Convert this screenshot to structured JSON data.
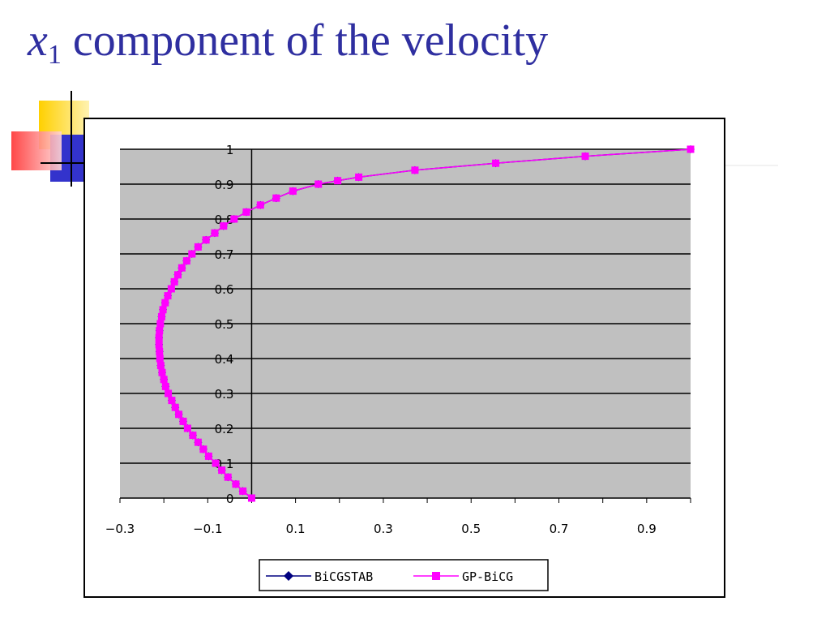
{
  "title": {
    "var": "x",
    "sub": "1",
    "text": " component of the velocity"
  },
  "colors": {
    "title": "#2f2fa0",
    "plot_background": "#c0c0c0",
    "bicgstab": "#000080",
    "gpbicg": "#ff00ff",
    "deco_yellow": "#ffd000",
    "deco_blue": "#3333cc",
    "deco_red": "#ff3333"
  },
  "chart_data": {
    "type": "line",
    "xlim": [
      -0.3,
      1.0
    ],
    "ylim": [
      0,
      1
    ],
    "xticks": [
      "-0.3",
      "-0.1",
      "0.1",
      "0.3",
      "0.5",
      "0.7",
      "0.9"
    ],
    "yticks": [
      "0",
      "0.1",
      "0.2",
      "0.3",
      "0.4",
      "0.5",
      "0.6",
      "0.7",
      "0.8",
      "0.9",
      "1"
    ],
    "grid": "horizontal",
    "legend": "bottom",
    "y": [
      0,
      0.02,
      0.04,
      0.06,
      0.08,
      0.1,
      0.12,
      0.14,
      0.16,
      0.18,
      0.2,
      0.22,
      0.24,
      0.26,
      0.28,
      0.3,
      0.32,
      0.34,
      0.36,
      0.38,
      0.4,
      0.42,
      0.44,
      0.46,
      0.48,
      0.5,
      0.52,
      0.54,
      0.56,
      0.58,
      0.6,
      0.62,
      0.64,
      0.66,
      0.68,
      0.7,
      0.72,
      0.74,
      0.76,
      0.78,
      0.8,
      0.82,
      0.84,
      0.86,
      0.88,
      0.9,
      0.91,
      0.92,
      0.94,
      0.96,
      0.98,
      1.0
    ],
    "series": [
      {
        "name": "BiCGSTAB",
        "marker": "diamond",
        "x": [
          0.0,
          -0.02,
          -0.036,
          -0.054,
          -0.068,
          -0.082,
          -0.098,
          -0.11,
          -0.122,
          -0.134,
          -0.146,
          -0.156,
          -0.166,
          -0.174,
          -0.182,
          -0.19,
          -0.196,
          -0.2,
          -0.204,
          -0.207,
          -0.209,
          -0.21,
          -0.211,
          -0.211,
          -0.21,
          -0.208,
          -0.205,
          -0.202,
          -0.197,
          -0.191,
          -0.183,
          -0.176,
          -0.168,
          -0.159,
          -0.148,
          -0.136,
          -0.122,
          -0.104,
          -0.084,
          -0.064,
          -0.04,
          -0.012,
          0.02,
          0.056,
          0.094,
          0.152,
          0.196,
          0.244,
          0.372,
          0.556,
          0.76,
          1.0
        ]
      },
      {
        "name": "GP-BiCG",
        "marker": "square",
        "x": [
          0.0,
          -0.02,
          -0.036,
          -0.054,
          -0.068,
          -0.082,
          -0.098,
          -0.11,
          -0.122,
          -0.134,
          -0.146,
          -0.156,
          -0.166,
          -0.174,
          -0.182,
          -0.19,
          -0.196,
          -0.2,
          -0.204,
          -0.207,
          -0.209,
          -0.21,
          -0.211,
          -0.211,
          -0.21,
          -0.208,
          -0.205,
          -0.202,
          -0.197,
          -0.191,
          -0.183,
          -0.176,
          -0.168,
          -0.159,
          -0.148,
          -0.136,
          -0.122,
          -0.104,
          -0.084,
          -0.064,
          -0.04,
          -0.012,
          0.02,
          0.056,
          0.094,
          0.152,
          0.196,
          0.244,
          0.372,
          0.556,
          0.76,
          1.0
        ]
      }
    ]
  }
}
